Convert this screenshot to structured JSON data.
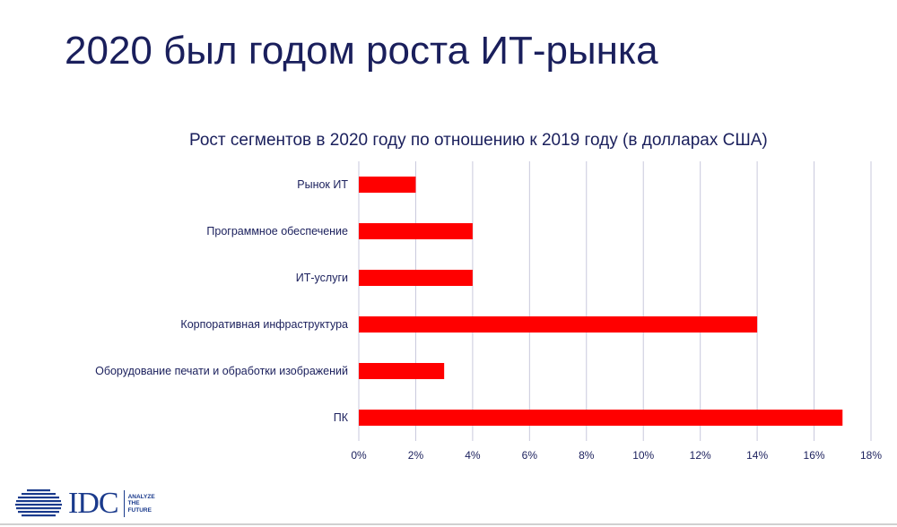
{
  "slide": {
    "title": "2020 был годом роста ИТ-рынка"
  },
  "footer": {
    "logo_text": "IDC",
    "logo_tagline": "ANALYZE\nTHE\nFUTURE"
  },
  "colors": {
    "bar": "#ff0000",
    "grid": "#c8c8dc",
    "text": "#1a1f5c",
    "tick": "#1a1f5c"
  },
  "chart_data": {
    "type": "bar",
    "orientation": "horizontal",
    "title": "Рост сегментов в 2020 году по отношению к 2019 году (в долларах США)",
    "categories": [
      "Рынок ИТ",
      "Программное обеспечение",
      "ИТ-услуги",
      "Корпоративная инфраструктура",
      "Оборудование печати и обработки изображений",
      "ПК"
    ],
    "values": [
      2,
      4,
      4,
      14,
      3,
      17
    ],
    "xlim": [
      0,
      18
    ],
    "xticks": [
      "0%",
      "2%",
      "4%",
      "6%",
      "8%",
      "10%",
      "12%",
      "14%",
      "16%",
      "18%"
    ],
    "grid": true,
    "legend": "none"
  }
}
